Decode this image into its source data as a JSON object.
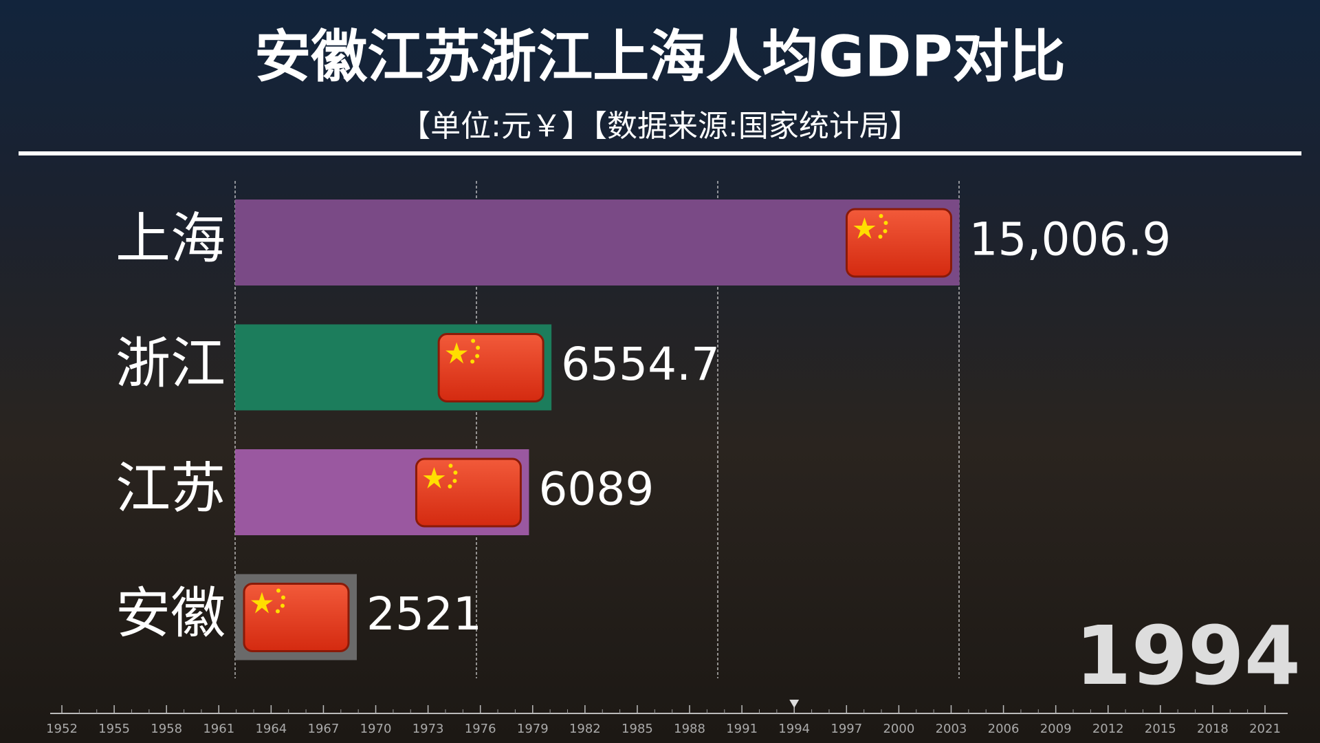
{
  "chart_data": {
    "type": "bar",
    "orientation": "horizontal",
    "title": "安徽江苏浙江上海人均GDP对比",
    "subtitle": "【单位:元￥】【数据来源:国家统计局】",
    "categories": [
      "上海",
      "浙江",
      "江苏",
      "安徽"
    ],
    "values": [
      15006.9,
      6554.7,
      6089,
      2521
    ],
    "value_labels": [
      "15,006.9",
      "6554.7",
      "6089",
      "2521"
    ],
    "colors": [
      "#7a4a86",
      "#1c7d5c",
      "#9a58a0",
      "#6a6a6a"
    ],
    "xlim": [
      0,
      15000
    ],
    "xticks": [
      0,
      5000,
      10000,
      15000
    ],
    "grid": true,
    "year": 1994,
    "timeline": [
      1952,
      1955,
      1958,
      1961,
      1964,
      1967,
      1970,
      1973,
      1976,
      1979,
      1982,
      1985,
      1988,
      1991,
      1994,
      1997,
      2000,
      2003,
      2006,
      2009,
      2012,
      2015,
      2018,
      2021
    ]
  }
}
